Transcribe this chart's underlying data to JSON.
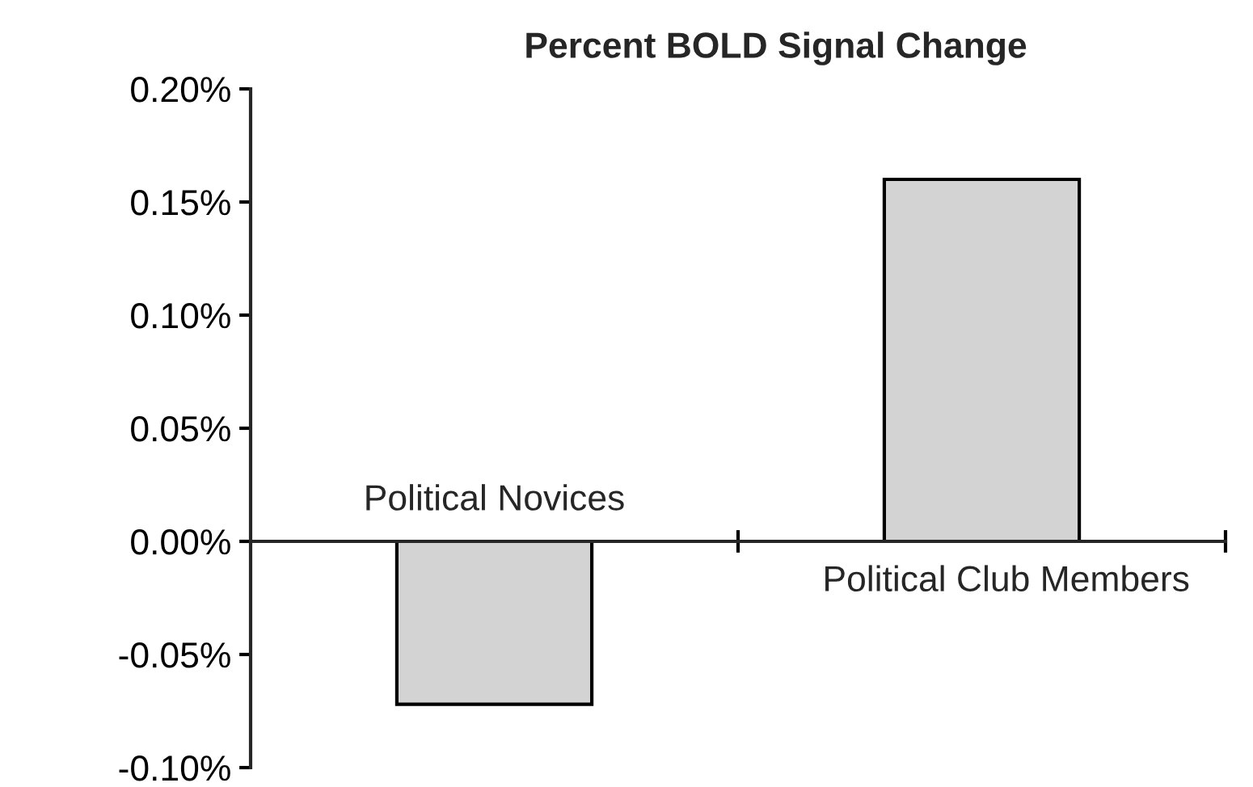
{
  "chart_data": {
    "type": "bar",
    "title": "Percent BOLD Signal Change",
    "categories": [
      "Political Novices",
      "Political Club Members"
    ],
    "values": [
      -0.072,
      0.16
    ],
    "color": "#d3d3d3",
    "ylim": [
      -0.1,
      0.2
    ],
    "yticks": [
      {
        "value": -0.1,
        "label": "-0.10%"
      },
      {
        "value": -0.05,
        "label": "-0.05%"
      },
      {
        "value": 0,
        "label": "0.00%"
      },
      {
        "value": 0.05,
        "label": "0.05%"
      },
      {
        "value": 0.1,
        "label": "0.10%"
      },
      {
        "value": 0.15,
        "label": "0.15%"
      },
      {
        "value": 0.2,
        "label": "0.20%"
      }
    ],
    "legend": false
  }
}
